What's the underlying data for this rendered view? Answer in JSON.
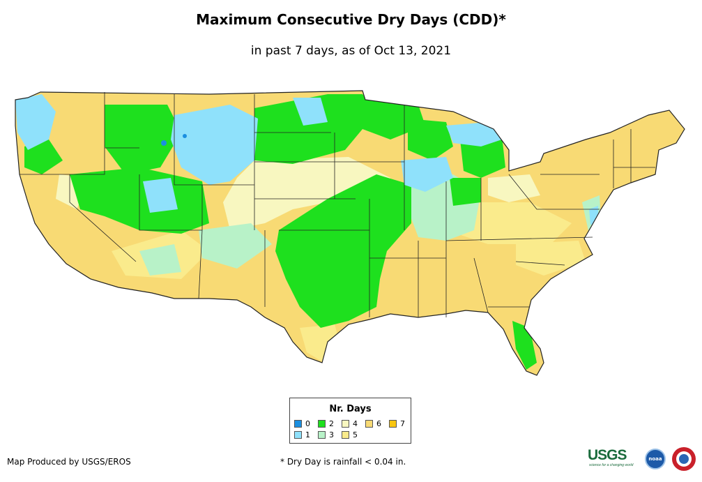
{
  "title": "Maximum Consecutive Dry Days (CDD)*",
  "subtitle": "in past 7 days, as of Oct 13, 2021",
  "legend": {
    "title": "Nr. Days",
    "items": [
      {
        "label": "0",
        "color": "#1b8fe0"
      },
      {
        "label": "1",
        "color": "#8fe1fb"
      },
      {
        "label": "2",
        "color": "#1ee01e"
      },
      {
        "label": "3",
        "color": "#b8f2c8"
      },
      {
        "label": "4",
        "color": "#f8f7c0"
      },
      {
        "label": "5",
        "color": "#faeb8c"
      },
      {
        "label": "6",
        "color": "#f8da74"
      },
      {
        "label": "7",
        "color": "#f9c610"
      }
    ]
  },
  "credit": "Map Produced by USGS/EROS",
  "footnote": "* Dry Day is rainfall < 0.04 in.",
  "logos": {
    "usgs": "USGS",
    "usgs_tagline": "science for a changing world",
    "noaa": "noaa"
  },
  "map_layers": {
    "base_class": "6",
    "regions": [
      {
        "area": "Pacific Northwest coast",
        "class": "1"
      },
      {
        "area": "Northern Rockies / Montana",
        "class": "1"
      },
      {
        "area": "Northern Great Plains / Dakotas",
        "class": "2"
      },
      {
        "area": "Northern Great Basin / Idaho / Utah",
        "class": "2"
      },
      {
        "area": "Central Plains to Missouri / Arkansas",
        "class": "2"
      },
      {
        "area": "Oklahoma / North Texas",
        "class": "2"
      },
      {
        "area": "Upper Midwest / Great Lakes",
        "class": "1"
      },
      {
        "area": "Ohio Valley",
        "class": "3"
      },
      {
        "area": "Nebraska / Kansas",
        "class": "4"
      },
      {
        "area": "Southeast / Gulf Coast",
        "class": "6"
      },
      {
        "area": "Southwest / California",
        "class": "6"
      },
      {
        "area": "Northeast / New England",
        "class": "6"
      },
      {
        "area": "South Florida",
        "class": "2"
      }
    ]
  }
}
